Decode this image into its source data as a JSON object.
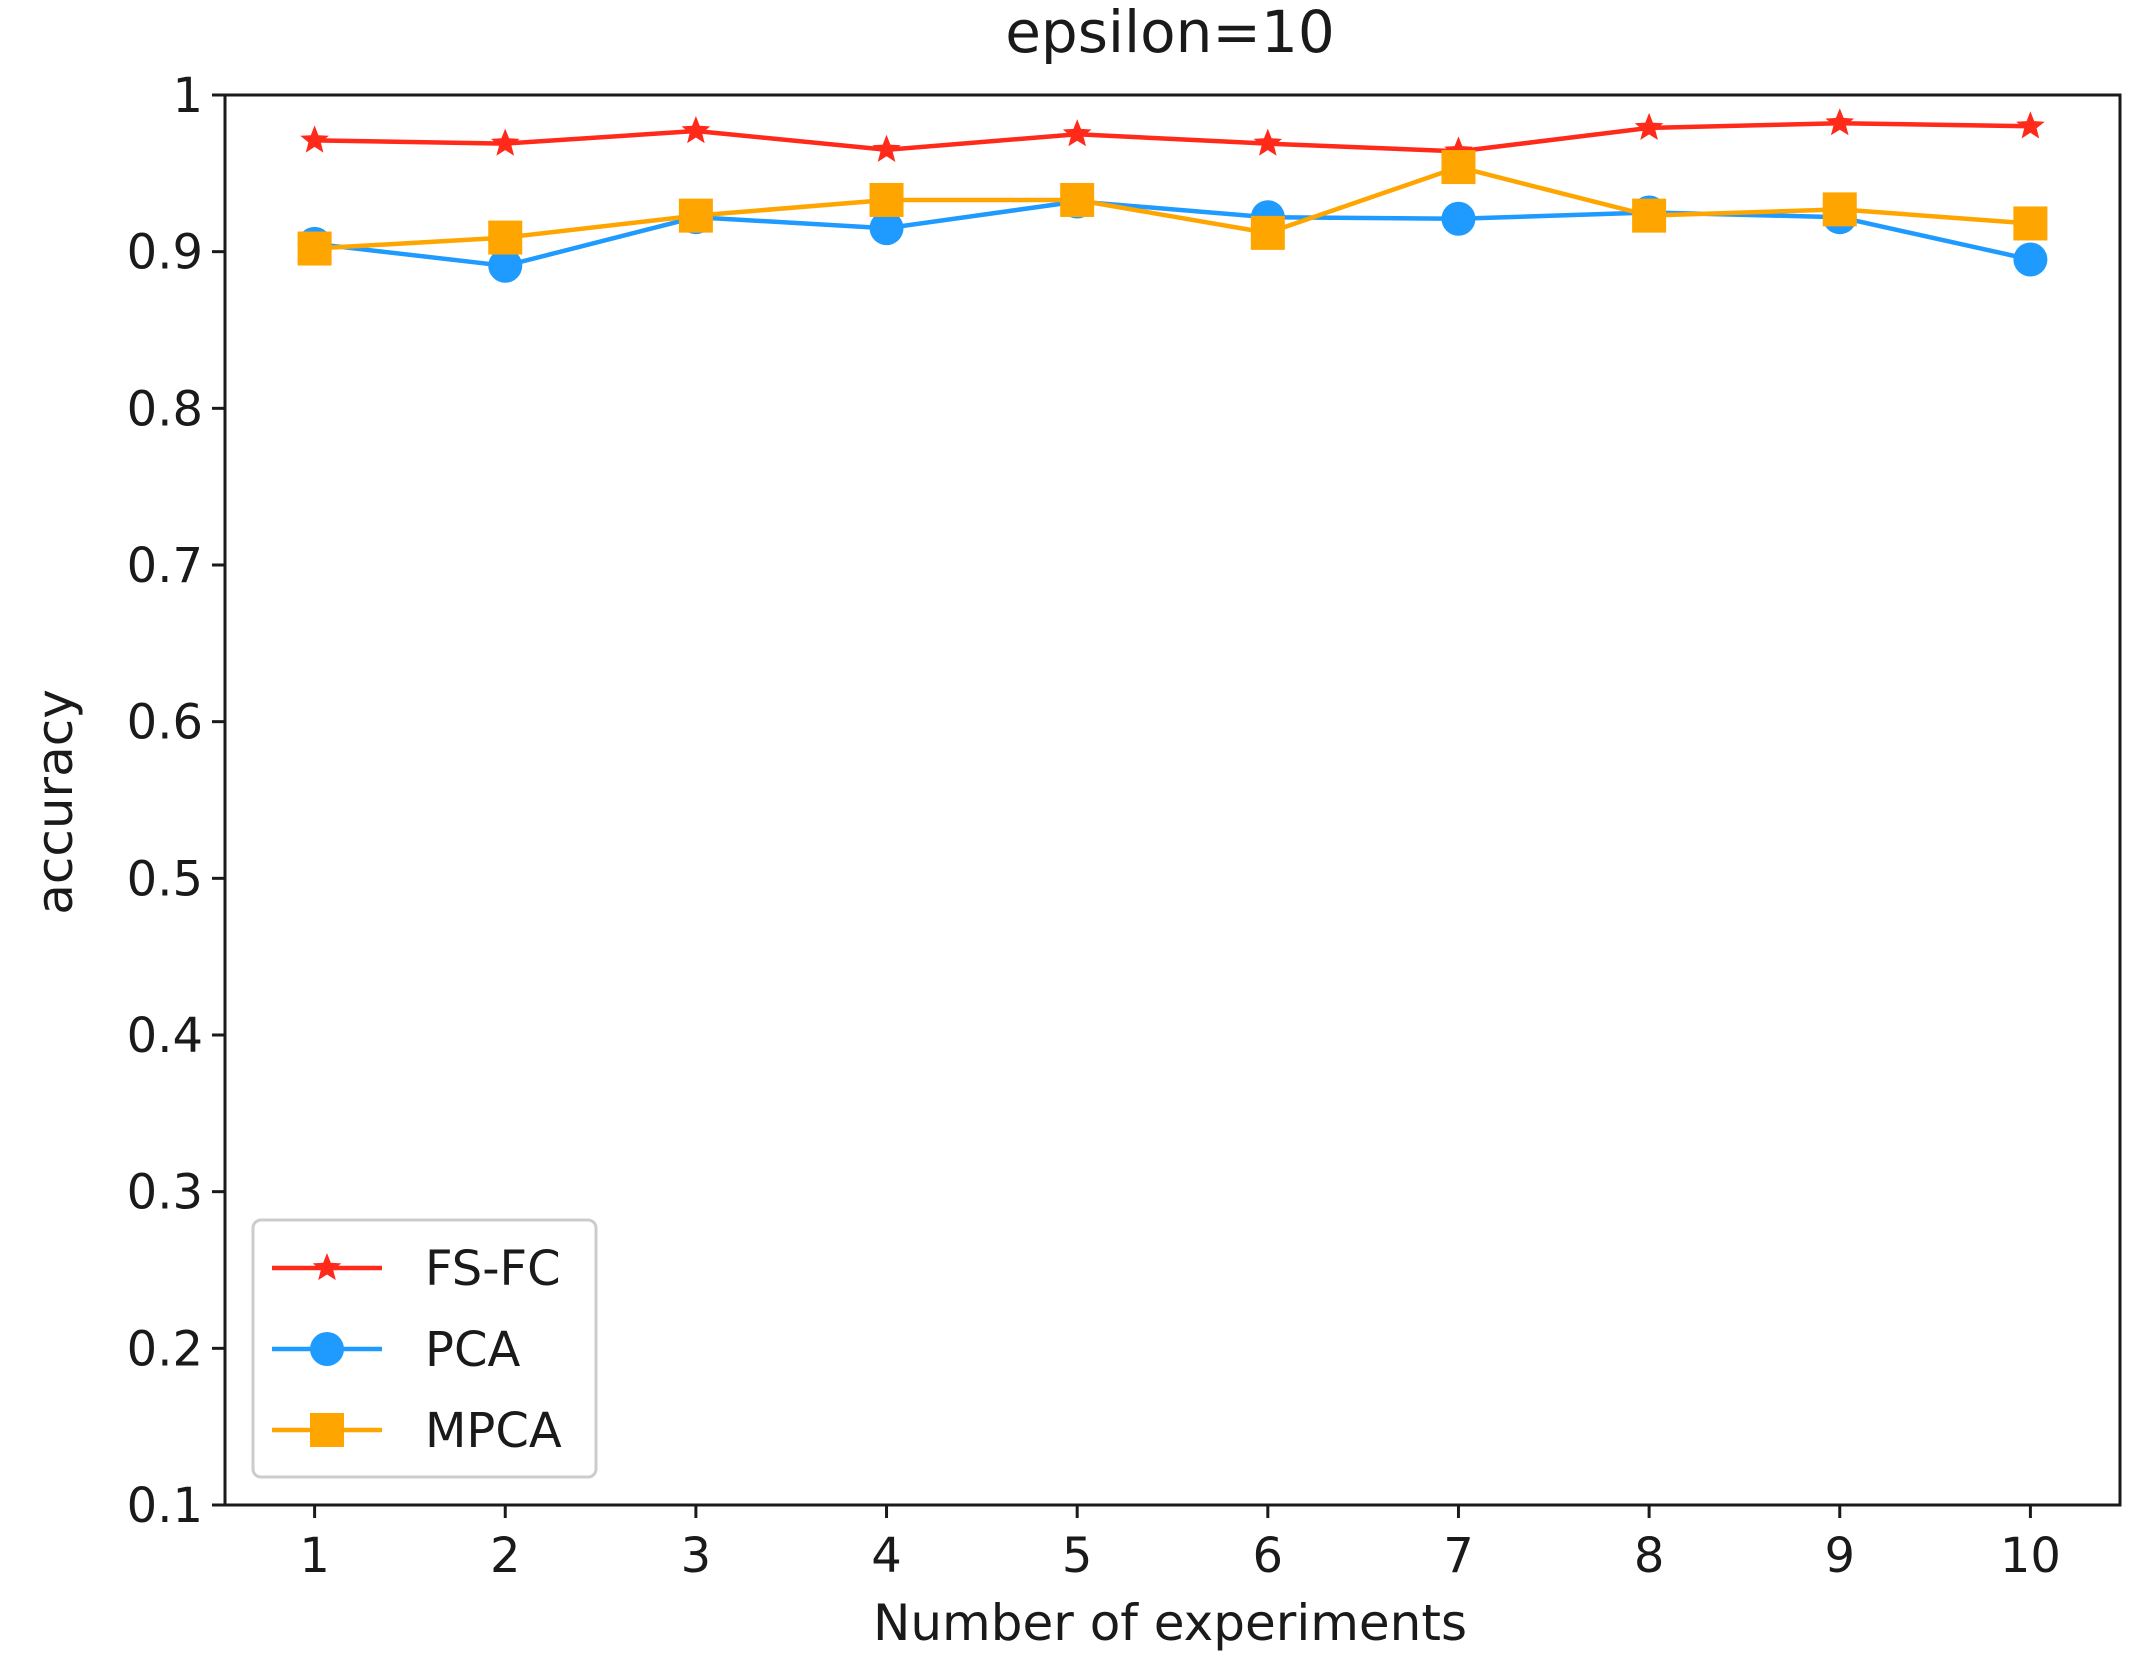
{
  "chart_data": {
    "type": "line",
    "title": "epsilon=10",
    "xlabel": "Number of experiments",
    "ylabel": "accuracy",
    "x": [
      1,
      2,
      3,
      4,
      5,
      6,
      7,
      8,
      9,
      10
    ],
    "xlim": [
      0.53,
      10.47
    ],
    "ylim": [
      0.1,
      1.0
    ],
    "yticks": [
      0.1,
      0.2,
      0.3,
      0.4,
      0.5,
      0.6,
      0.7,
      0.8,
      0.9,
      1.0
    ],
    "ytick_labels": [
      "0.1",
      "0.2",
      "0.3",
      "0.4",
      "0.5",
      "0.6",
      "0.7",
      "0.8",
      "0.9",
      "1"
    ],
    "xtick_labels": [
      "1",
      "2",
      "3",
      "4",
      "5",
      "6",
      "7",
      "8",
      "9",
      "10"
    ],
    "legend_position": "lower-left",
    "grid": false,
    "series": [
      {
        "name": "FS-FC",
        "color": "#ff2a1a",
        "marker": "star",
        "values": [
          0.971,
          0.969,
          0.977,
          0.965,
          0.975,
          0.969,
          0.964,
          0.979,
          0.982,
          0.98
        ]
      },
      {
        "name": "PCA",
        "color": "#1f9bff",
        "marker": "circle",
        "values": [
          0.905,
          0.891,
          0.922,
          0.915,
          0.932,
          0.922,
          0.921,
          0.925,
          0.922,
          0.895
        ]
      },
      {
        "name": "MPCA",
        "color": "#ffa500",
        "marker": "square",
        "values": [
          0.902,
          0.909,
          0.923,
          0.933,
          0.933,
          0.912,
          0.954,
          0.923,
          0.927,
          0.918
        ]
      }
    ]
  }
}
